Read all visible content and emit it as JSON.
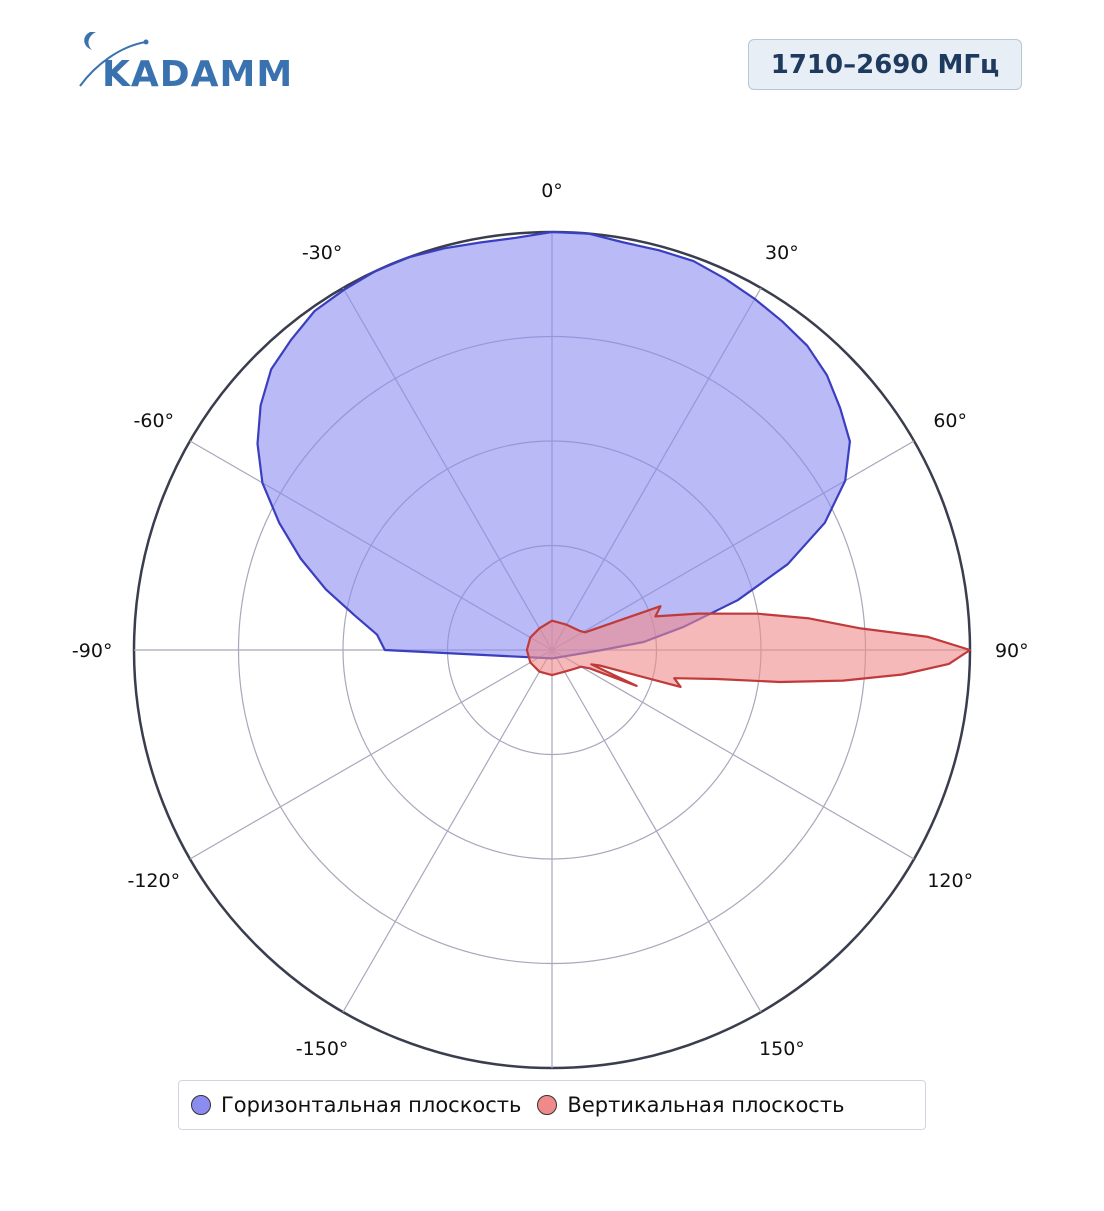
{
  "logo": {
    "text": "KADAMM"
  },
  "band_label": "1710–2690 МГц",
  "colors": {
    "horizontal_fill": "#8a8cf0",
    "horizontal_stroke": "#3a3fbf",
    "vertical_fill": "#f08a8a",
    "vertical_stroke": "#c03a3a",
    "grid": "#a8a8bc",
    "outer_ring": "#3a3d4d",
    "logo": "#3a72b0"
  },
  "chart_data": {
    "type": "polar",
    "angular_ticks": [
      {
        "angle": 0,
        "label": "0°"
      },
      {
        "angle": 30,
        "label": "30°"
      },
      {
        "angle": 60,
        "label": "60°"
      },
      {
        "angle": 90,
        "label": "90°"
      },
      {
        "angle": 120,
        "label": "120°"
      },
      {
        "angle": 150,
        "label": "150°"
      },
      {
        "angle": 180,
        "label": ""
      },
      {
        "angle": -150,
        "label": "-150°"
      },
      {
        "angle": -120,
        "label": "-120°"
      },
      {
        "angle": -90,
        "label": "-90°"
      },
      {
        "angle": -60,
        "label": "-60°"
      },
      {
        "angle": -30,
        "label": "-30°"
      }
    ],
    "radial_range": [
      0,
      1
    ],
    "radial_rings": [
      0.25,
      0.5,
      0.75,
      1.0
    ],
    "direction": "clockwise",
    "zero_location": "top",
    "grid": true,
    "legend_position": "bottom",
    "series": [
      {
        "name": "Горизонтальная плоскость",
        "angles": [
          -90,
          -85,
          -80,
          -75,
          -70,
          -65,
          -60,
          -55,
          -50,
          -45,
          -40,
          -35,
          -30,
          -25,
          -20,
          -15,
          -10,
          -5,
          0,
          5,
          10,
          15,
          20,
          25,
          30,
          35,
          40,
          45,
          50,
          55,
          60,
          65,
          70,
          75,
          80,
          85,
          90,
          180
        ],
        "values": [
          0.4,
          0.42,
          0.48,
          0.56,
          0.64,
          0.72,
          0.8,
          0.86,
          0.91,
          0.95,
          0.97,
          0.99,
          0.995,
          1.0,
          1.0,
          0.995,
          0.99,
          0.99,
          1.0,
          1.0,
          0.99,
          0.99,
          0.99,
          0.98,
          0.97,
          0.96,
          0.95,
          0.93,
          0.9,
          0.87,
          0.81,
          0.72,
          0.6,
          0.46,
          0.32,
          0.22,
          0.12,
          0.02
        ]
      },
      {
        "name": "Вертикальная плоскость",
        "angles": [
          -180,
          -150,
          -120,
          -90,
          -60,
          -30,
          0,
          30,
          55,
          62,
          68,
          72,
          76,
          80,
          83,
          86,
          88,
          90,
          92,
          94,
          96,
          98,
          100,
          103,
          106,
          108,
          110,
          113,
          116,
          120,
          130,
          150,
          180
        ],
        "values": [
          0.06,
          0.06,
          0.06,
          0.06,
          0.06,
          0.06,
          0.07,
          0.07,
          0.08,
          0.09,
          0.28,
          0.26,
          0.36,
          0.5,
          0.62,
          0.74,
          0.9,
          1.0,
          0.95,
          0.84,
          0.7,
          0.55,
          0.4,
          0.3,
          0.32,
          0.12,
          0.1,
          0.22,
          0.1,
          0.08,
          0.07,
          0.06,
          0.06
        ]
      }
    ]
  }
}
